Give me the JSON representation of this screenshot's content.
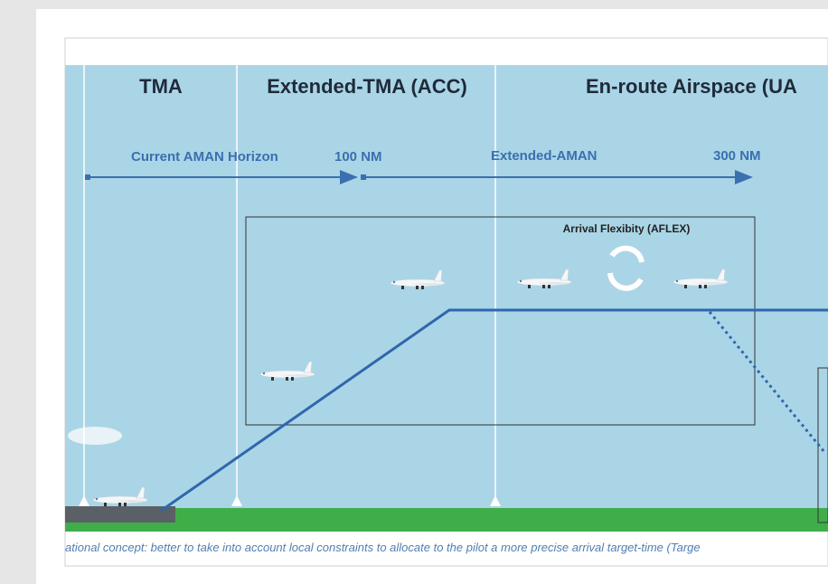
{
  "zones": [
    "TMA",
    "Extended-TMA (ACC)",
    "En-route Airspace (UA"
  ],
  "horizons": [
    "Current AMAN Horizon",
    "100 NM",
    "Extended-AMAN",
    "300 NM"
  ],
  "box_label": "Arrival Flexibity (AFLEX)",
  "caption": "ational concept: better to take into account local constraints to allocate to the pilot a more precise arrival target-time (Targe"
}
